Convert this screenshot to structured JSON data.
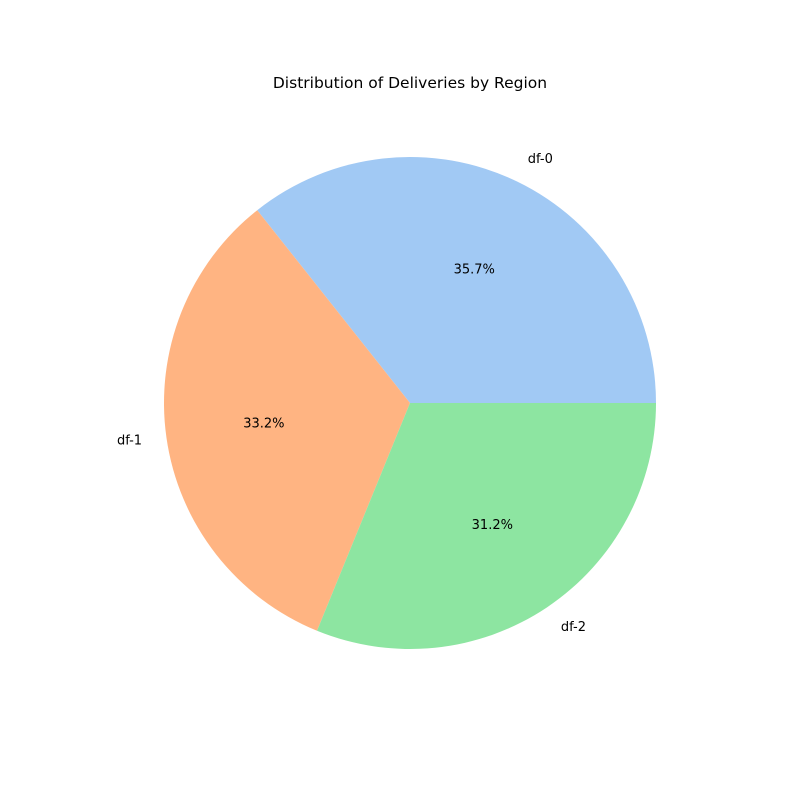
{
  "chart_data": {
    "type": "pie",
    "title": "Distribution of Deliveries by Region",
    "labels": [
      "df-0",
      "df-1",
      "df-2"
    ],
    "values": [
      35.7,
      33.2,
      31.2
    ],
    "percent_labels": [
      "35.7%",
      "33.2%",
      "31.2%"
    ],
    "colors": [
      "#a1c9f4",
      "#ffb482",
      "#8de5a1"
    ],
    "start_angle_deg": 0,
    "direction": "counterclockwise",
    "legend": "none"
  }
}
